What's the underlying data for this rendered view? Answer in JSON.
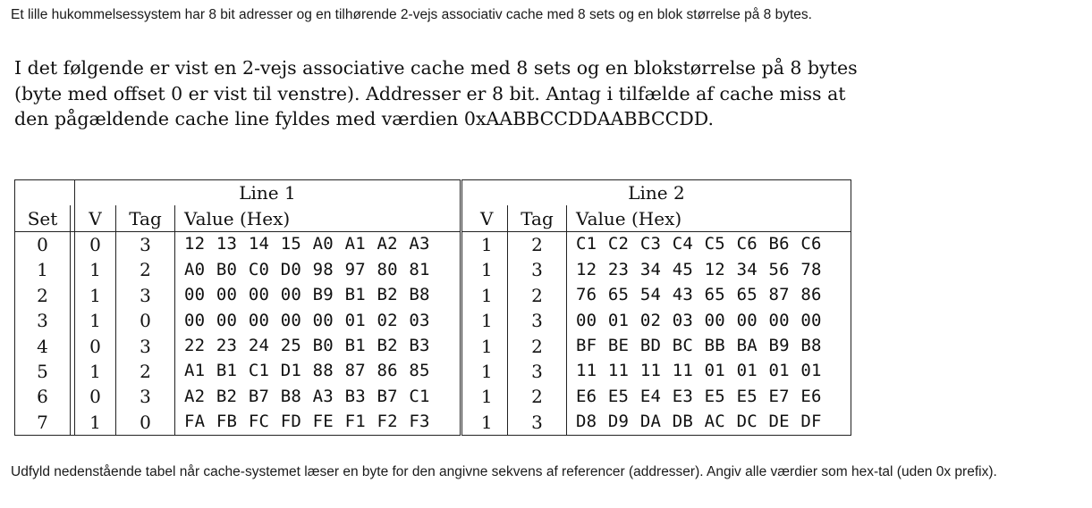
{
  "intro": "Et lille hukommelsessystem har 8 bit adresser og en tilhørende 2-vejs associativ cache med 8 sets og en blok størrelse på 8 bytes.",
  "description": [
    "I det følgende er vist en 2-vejs associative cache med 8 sets og en blokstørrelse på 8 bytes",
    "(byte med offset 0 er vist til venstre). Addresser er 8 bit. Antag i tilfælde af cache miss at",
    "den pågældende cache line fyldes med værdien 0xAABBCCDDAABBCCDD."
  ],
  "table": {
    "line1_header": "Line 1",
    "line2_header": "Line 2",
    "columns": {
      "set": "Set",
      "v1": "V",
      "tag1": "Tag",
      "value1": "Value (Hex)",
      "v2": "V",
      "tag2": "Tag",
      "value2": "Value (Hex)"
    },
    "rows": [
      {
        "set": "0",
        "v1": "0",
        "tag1": "3",
        "value1": "12 13 14 15 A0 A1 A2 A3",
        "v2": "1",
        "tag2": "2",
        "value2": "C1 C2 C3 C4 C5 C6 B6 C6"
      },
      {
        "set": "1",
        "v1": "1",
        "tag1": "2",
        "value1": "A0 B0 C0 D0 98 97 80 81",
        "v2": "1",
        "tag2": "3",
        "value2": "12 23 34 45 12 34 56 78"
      },
      {
        "set": "2",
        "v1": "1",
        "tag1": "3",
        "value1": "00 00 00 00 B9 B1 B2 B8",
        "v2": "1",
        "tag2": "2",
        "value2": "76 65 54 43 65 65 87 86"
      },
      {
        "set": "3",
        "v1": "1",
        "tag1": "0",
        "value1": "00 00 00 00 00 01 02 03",
        "v2": "1",
        "tag2": "3",
        "value2": "00 01 02 03 00 00 00 00"
      },
      {
        "set": "4",
        "v1": "0",
        "tag1": "3",
        "value1": "22 23 24 25 B0 B1 B2 B3",
        "v2": "1",
        "tag2": "2",
        "value2": "BF BE BD BC BB BA B9 B8"
      },
      {
        "set": "5",
        "v1": "1",
        "tag1": "2",
        "value1": "A1 B1 C1 D1 88 87 86 85",
        "v2": "1",
        "tag2": "3",
        "value2": "11 11 11 11 01 01 01 01"
      },
      {
        "set": "6",
        "v1": "0",
        "tag1": "3",
        "value1": "A2 B2 B7 B8 A3 B3 B7 C1",
        "v2": "1",
        "tag2": "2",
        "value2": "E6 E5 E4 E3 E5 E5 E7 E6"
      },
      {
        "set": "7",
        "v1": "1",
        "tag1": "0",
        "value1": "FA FB FC FD FE F1 F2 F3",
        "v2": "1",
        "tag2": "3",
        "value2": "D8 D9 DA DB AC DC DE DF"
      }
    ]
  },
  "footer": "Udfyld nedenstående tabel når cache-systemet læser en byte for den angivne sekvens af referencer (addresser). Angiv alle værdier som hex-tal (uden 0x prefix)."
}
